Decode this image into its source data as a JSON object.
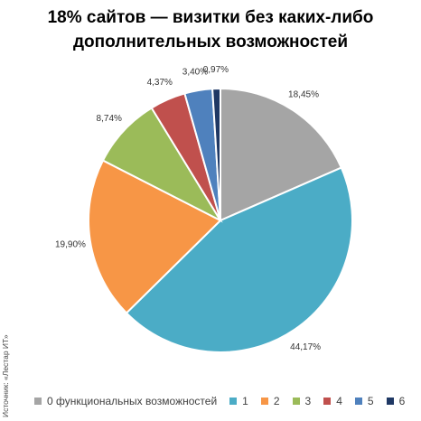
{
  "title_line1": "18% сайтов — визитки без каких-либо",
  "title_line2": "дополнительных возможностей",
  "source": "Источник: «Лестар ИТ»",
  "chart_data": {
    "type": "pie",
    "categories": [
      "0 функциональных возможностей",
      "1",
      "2",
      "3",
      "4",
      "5",
      "6"
    ],
    "values": [
      18.45,
      44.17,
      19.9,
      8.74,
      4.37,
      3.4,
      0.97
    ],
    "labels": [
      "18,45%",
      "44,17%",
      "19,90%",
      "8,74%",
      "4,37%",
      "3,40%",
      "0,97%"
    ],
    "colors": [
      "#a5a5a5",
      "#4bacc6",
      "#f79646",
      "#9bbb59",
      "#c0504d",
      "#4f81bd",
      "#1f3864"
    ],
    "legend_position": "bottom"
  }
}
